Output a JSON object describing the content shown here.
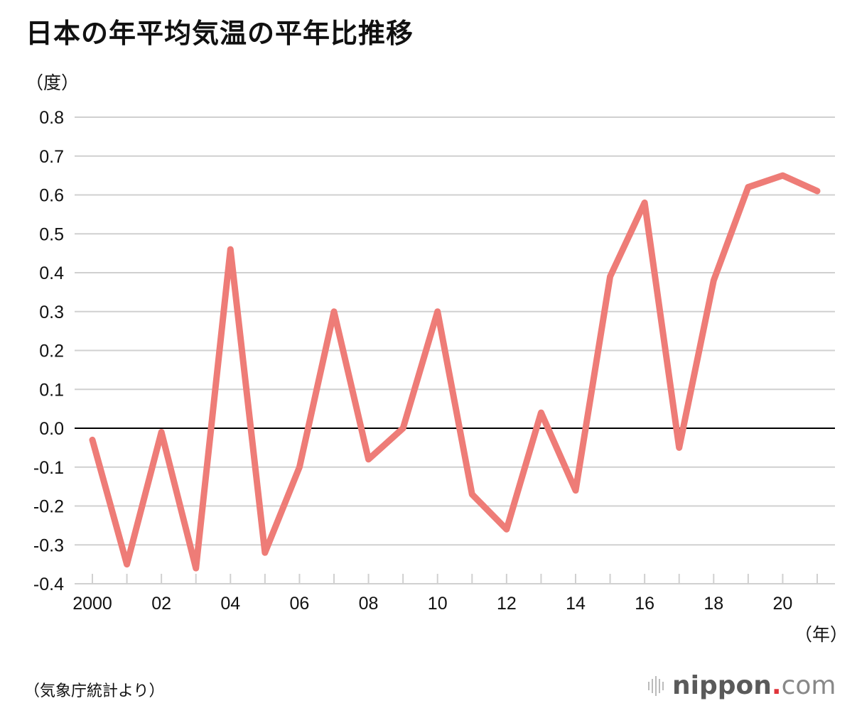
{
  "title": "日本の年平均気温の平年比推移",
  "source": "（気象庁統計より）",
  "logo": {
    "name": "nippon",
    "dot": ".",
    "tld": "com"
  },
  "colors": {
    "line": "#ee7c77",
    "grid": "#d0d0d0",
    "zero": "#000000"
  },
  "chart_data": {
    "type": "line",
    "title": "日本の年平均気温の平年比推移",
    "ylabel": "（度）",
    "xlabel": "（年）",
    "ylim": [
      -0.4,
      0.8
    ],
    "yticks": [
      0.8,
      0.7,
      0.6,
      0.5,
      0.4,
      0.3,
      0.2,
      0.1,
      0.0,
      -0.1,
      -0.2,
      -0.3,
      -0.4
    ],
    "ytick_labels": [
      "0.8",
      "0.7",
      "0.6",
      "0.5",
      "0.4",
      "0.3",
      "0.2",
      "0.1",
      "0.0",
      "-0.1",
      "-0.2",
      "-0.3",
      "-0.4"
    ],
    "xlim": [
      2000,
      2021
    ],
    "xticks": [
      2000,
      2002,
      2004,
      2006,
      2008,
      2010,
      2012,
      2014,
      2016,
      2018,
      2020
    ],
    "xtick_labels": [
      "2000",
      "02",
      "04",
      "06",
      "08",
      "10",
      "12",
      "14",
      "16",
      "18",
      "20"
    ],
    "grid": true,
    "series": [
      {
        "name": "平年比",
        "x": [
          2000,
          2001,
          2002,
          2003,
          2004,
          2005,
          2006,
          2007,
          2008,
          2009,
          2010,
          2011,
          2012,
          2013,
          2014,
          2015,
          2016,
          2017,
          2018,
          2019,
          2020,
          2021
        ],
        "values": [
          -0.03,
          -0.35,
          -0.01,
          -0.36,
          0.46,
          -0.32,
          -0.1,
          0.3,
          -0.08,
          0.0,
          0.3,
          -0.17,
          -0.26,
          0.04,
          -0.16,
          0.39,
          0.58,
          -0.05,
          0.38,
          0.62,
          0.65,
          0.61
        ]
      }
    ]
  }
}
